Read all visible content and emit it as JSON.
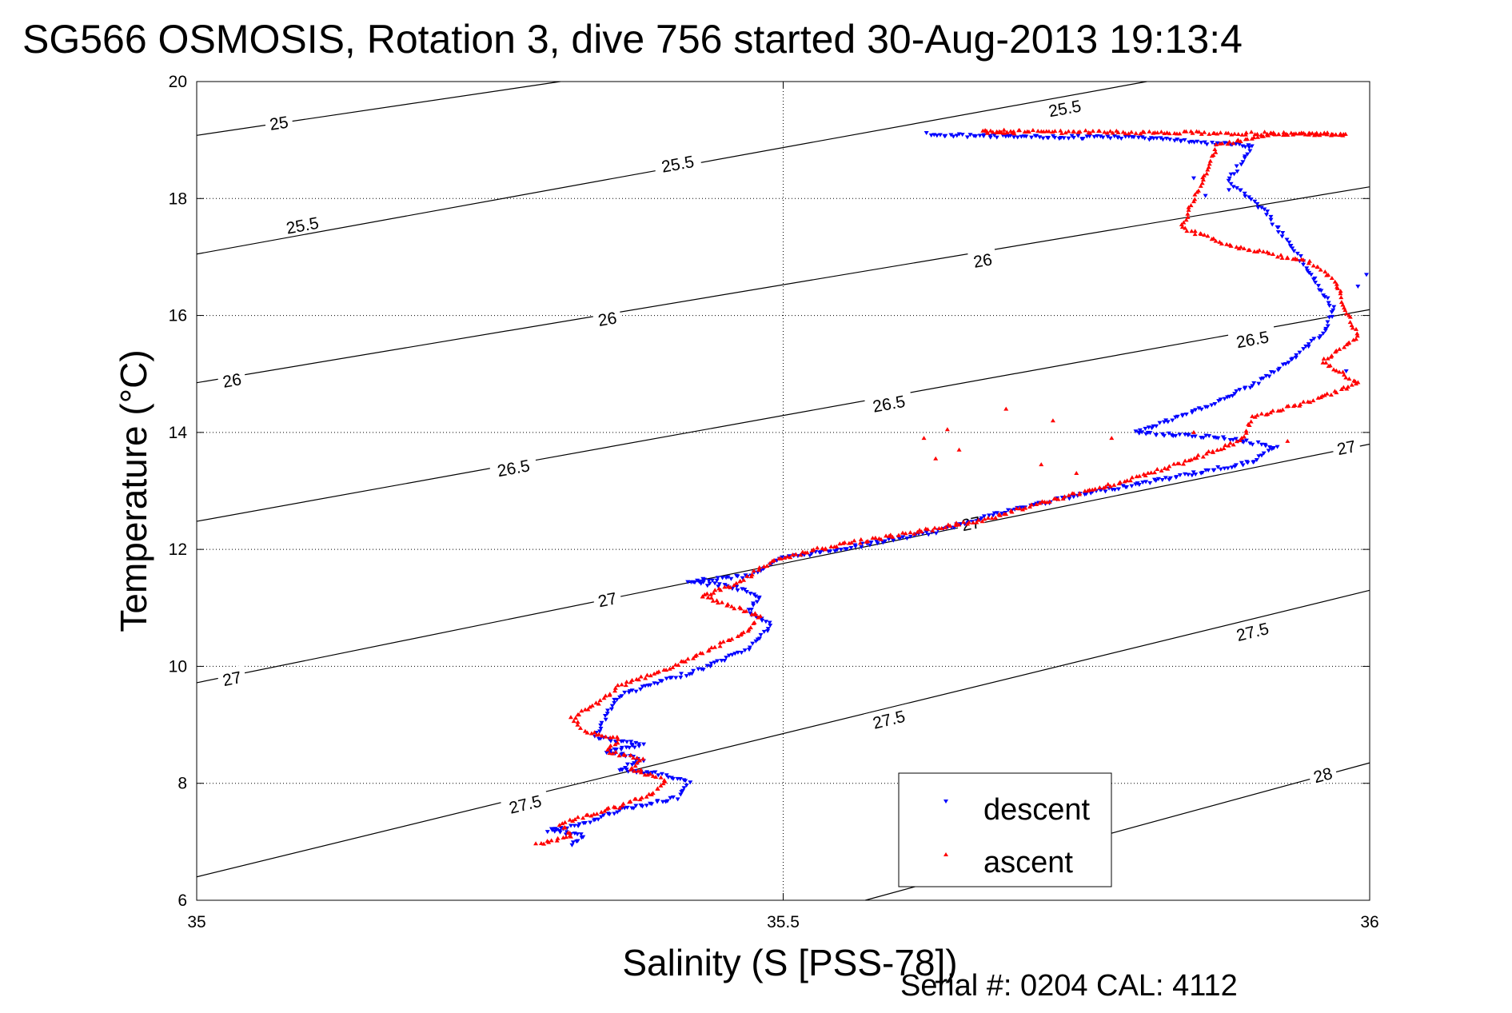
{
  "chart_data": {
    "type": "scatter",
    "title": "SG566 OSMOSIS, Rotation 3, dive 756 started 30-Aug-2013 19:13:4",
    "xlabel": "Salinity (S [PSS-78])",
    "ylabel": "Temperature (°C)",
    "footer": "Serial #: 0204  CAL: 4112",
    "xlim": [
      35,
      36
    ],
    "ylim": [
      6,
      20
    ],
    "xticks": [
      35,
      35.5,
      36
    ],
    "yticks": [
      6,
      8,
      10,
      12,
      14,
      16,
      18,
      20
    ],
    "xtick_labels": [
      "35",
      "35.5",
      "36"
    ],
    "ytick_labels": [
      "6",
      "8",
      "10",
      "12",
      "14",
      "16",
      "18",
      "20"
    ],
    "grid": "dotted",
    "legend_position": "bottom-right",
    "isopycnals": [
      {
        "label": "25",
        "line": [
          [
            35,
            19.08
          ],
          [
            35.31,
            20.0
          ]
        ],
        "labels_at": [
          [
            35.07,
            19.3
          ]
        ]
      },
      {
        "label": "25.5",
        "line": [
          [
            35,
            17.05
          ],
          [
            35.81,
            20.0
          ]
        ],
        "labels_at": [
          [
            35.09,
            17.55
          ],
          [
            35.41,
            18.6
          ],
          [
            35.74,
            19.55
          ]
        ]
      },
      {
        "label": "26",
        "line": [
          [
            35,
            14.85
          ],
          [
            36,
            18.2
          ]
        ],
        "labels_at": [
          [
            35.03,
            14.9
          ],
          [
            35.35,
            15.95
          ],
          [
            35.67,
            16.95
          ]
        ]
      },
      {
        "label": "26.5",
        "line": [
          [
            35,
            12.48
          ],
          [
            36,
            16.1
          ]
        ],
        "labels_at": [
          [
            35.27,
            13.4
          ],
          [
            35.59,
            14.5
          ],
          [
            35.9,
            15.6
          ]
        ]
      },
      {
        "label": "27",
        "line": [
          [
            35,
            9.72
          ],
          [
            36,
            13.8
          ]
        ],
        "labels_at": [
          [
            35.03,
            9.8
          ],
          [
            35.35,
            11.15
          ],
          [
            35.66,
            12.45
          ],
          [
            35.98,
            13.75
          ]
        ]
      },
      {
        "label": "27.5",
        "line": [
          [
            35,
            6.4
          ],
          [
            36,
            11.3
          ]
        ],
        "labels_at": [
          [
            35.28,
            7.65
          ],
          [
            35.59,
            9.1
          ],
          [
            35.9,
            10.6
          ]
        ]
      },
      {
        "label": "28",
        "line": [
          [
            35.57,
            6.0
          ],
          [
            36,
            8.35
          ]
        ],
        "labels_at": [
          [
            35.96,
            8.15
          ]
        ]
      }
    ],
    "series": [
      {
        "name": "descent",
        "color": "#0000ff",
        "marker": "triangle-down",
        "path": [
          [
            35.32,
            6.95
          ],
          [
            35.33,
            7.1
          ],
          [
            35.3,
            7.2
          ],
          [
            35.33,
            7.3
          ],
          [
            35.36,
            7.55
          ],
          [
            35.41,
            7.75
          ],
          [
            35.42,
            8.0
          ],
          [
            35.4,
            8.15
          ],
          [
            35.36,
            8.25
          ],
          [
            35.38,
            8.4
          ],
          [
            35.35,
            8.55
          ],
          [
            35.38,
            8.65
          ],
          [
            35.34,
            8.8
          ],
          [
            35.35,
            9.2
          ],
          [
            35.36,
            9.5
          ],
          [
            35.39,
            9.7
          ],
          [
            35.43,
            9.95
          ],
          [
            35.47,
            10.3
          ],
          [
            35.49,
            10.7
          ],
          [
            35.47,
            10.95
          ],
          [
            35.48,
            11.2
          ],
          [
            35.46,
            11.35
          ],
          [
            35.42,
            11.45
          ],
          [
            35.47,
            11.55
          ],
          [
            35.5,
            11.85
          ],
          [
            35.56,
            12.05
          ],
          [
            35.63,
            12.3
          ],
          [
            35.67,
            12.55
          ],
          [
            35.71,
            12.75
          ],
          [
            35.77,
            13.0
          ],
          [
            35.85,
            13.3
          ],
          [
            35.9,
            13.5
          ],
          [
            35.92,
            13.75
          ],
          [
            35.88,
            13.9
          ],
          [
            35.8,
            14.0
          ],
          [
            35.85,
            14.35
          ],
          [
            35.9,
            14.8
          ],
          [
            35.93,
            15.2
          ],
          [
            35.96,
            15.7
          ],
          [
            35.97,
            16.1
          ],
          [
            35.94,
            17.0
          ],
          [
            35.91,
            17.8
          ],
          [
            35.88,
            18.3
          ],
          [
            35.9,
            18.9
          ],
          [
            35.8,
            19.05
          ],
          [
            35.7,
            19.05
          ],
          [
            35.62,
            19.1
          ]
        ],
        "extra_points": [
          [
            35.88,
            18.15
          ],
          [
            35.86,
            18.05
          ],
          [
            35.98,
            15.05
          ],
          [
            35.99,
            16.5
          ],
          [
            36.06,
            16.7
          ],
          [
            35.85,
            18.35
          ]
        ]
      },
      {
        "name": "ascent",
        "color": "#ff0000",
        "marker": "triangle-up",
        "path": [
          [
            35.29,
            6.95
          ],
          [
            35.32,
            7.1
          ],
          [
            35.31,
            7.3
          ],
          [
            35.36,
            7.6
          ],
          [
            35.39,
            7.85
          ],
          [
            35.4,
            8.05
          ],
          [
            35.37,
            8.25
          ],
          [
            35.38,
            8.4
          ],
          [
            35.35,
            8.55
          ],
          [
            35.36,
            8.75
          ],
          [
            35.33,
            8.9
          ],
          [
            35.32,
            9.1
          ],
          [
            35.34,
            9.35
          ],
          [
            35.36,
            9.65
          ],
          [
            35.4,
            9.95
          ],
          [
            35.44,
            10.3
          ],
          [
            35.47,
            10.6
          ],
          [
            35.48,
            10.85
          ],
          [
            35.43,
            11.2
          ],
          [
            35.46,
            11.4
          ],
          [
            35.49,
            11.8
          ],
          [
            35.54,
            12.05
          ],
          [
            35.6,
            12.25
          ],
          [
            35.67,
            12.5
          ],
          [
            35.72,
            12.8
          ],
          [
            35.78,
            13.1
          ],
          [
            35.82,
            13.35
          ],
          [
            35.85,
            13.55
          ],
          [
            35.89,
            13.85
          ],
          [
            35.9,
            14.25
          ],
          [
            35.96,
            14.6
          ],
          [
            35.99,
            14.85
          ],
          [
            35.96,
            15.2
          ],
          [
            35.99,
            15.65
          ],
          [
            35.98,
            16.1
          ],
          [
            35.97,
            16.6
          ],
          [
            35.95,
            16.9
          ],
          [
            35.88,
            17.2
          ],
          [
            35.84,
            17.5
          ],
          [
            35.85,
            18.0
          ],
          [
            35.86,
            18.4
          ],
          [
            35.87,
            18.9
          ],
          [
            35.92,
            19.1
          ],
          [
            35.98,
            19.1
          ],
          [
            35.67,
            19.15
          ],
          [
            35.7,
            19.1
          ]
        ],
        "extra_points": [
          [
            35.63,
            13.55
          ],
          [
            35.65,
            13.7
          ],
          [
            35.72,
            13.45
          ],
          [
            35.75,
            13.3
          ],
          [
            35.62,
            13.9
          ],
          [
            35.64,
            14.05
          ],
          [
            35.69,
            14.4
          ],
          [
            35.73,
            14.2
          ],
          [
            35.78,
            13.9
          ],
          [
            35.85,
            14.0
          ],
          [
            35.93,
            13.85
          ]
        ]
      }
    ]
  }
}
